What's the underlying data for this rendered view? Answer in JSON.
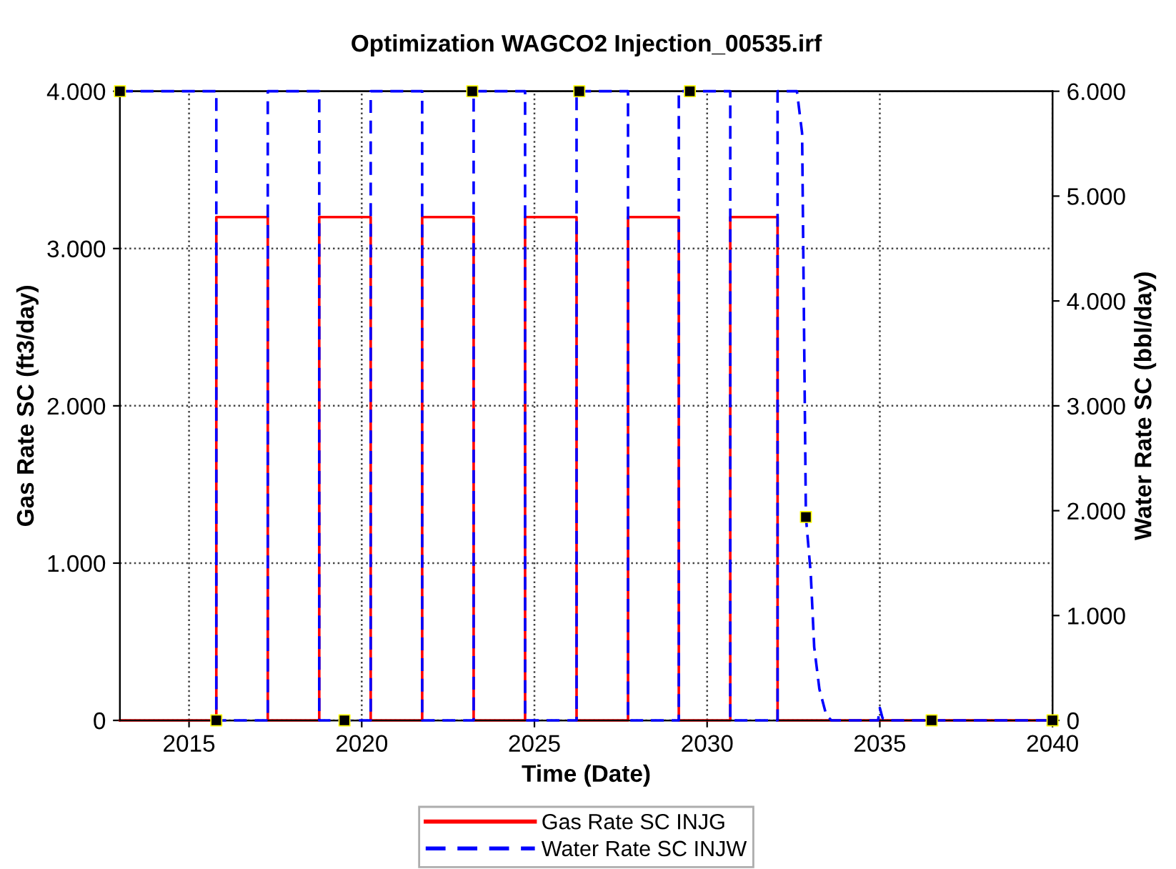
{
  "chart_data": {
    "type": "line",
    "title": "Optimization WAGCO2 Injection_00535.irf",
    "xlabel": "Time (Date)",
    "ylabel": "Gas Rate SC (ft3/day)",
    "y2label": "Water Rate SC (bbl/day)",
    "xlim": [
      2013,
      2040
    ],
    "xticks": [
      2015,
      2020,
      2025,
      2030,
      2035,
      2040
    ],
    "ylim": [
      0,
      4000
    ],
    "yticks": [
      0,
      {
        "value": 1000,
        "label": "1.000"
      },
      {
        "value": 2000,
        "label": "2.000"
      },
      {
        "value": 3000,
        "label": "3.000"
      },
      {
        "value": 4000,
        "label": "4.000"
      }
    ],
    "y2lim": [
      0,
      6000
    ],
    "y2ticks": [
      0,
      {
        "value": 1000,
        "label": "1.000"
      },
      {
        "value": 2000,
        "label": "2.000"
      },
      {
        "value": 3000,
        "label": "3.000"
      },
      {
        "value": 4000,
        "label": "4.000"
      },
      {
        "value": 5000,
        "label": "5.000"
      },
      {
        "value": 6000,
        "label": "6.000"
      }
    ],
    "grid": true,
    "legend": "bottom",
    "series": [
      {
        "name": "Gas Rate SC INJG",
        "color": "#ff0000",
        "line_style": "solid",
        "marker": "none",
        "x": [
          2013,
          2015.79,
          2015.79,
          2017.28,
          2017.28,
          2018.77,
          2018.77,
          2020.26,
          2020.26,
          2021.75,
          2021.75,
          2023.24,
          2023.24,
          2024.73,
          2024.73,
          2026.22,
          2026.22,
          2027.71,
          2027.71,
          2029.18,
          2029.18,
          2030.67,
          2030.67,
          2032.04,
          2032.04,
          2040
        ],
        "values": [
          0,
          0,
          3200,
          3200,
          0,
          0,
          3200,
          3200,
          0,
          0,
          3200,
          3200,
          0,
          0,
          3200,
          3200,
          0,
          0,
          3200,
          3200,
          0,
          0,
          3200,
          3200,
          0,
          0
        ]
      },
      {
        "name": "Water Rate SC INJW",
        "color": "#0000ff",
        "line_style": "dashed",
        "marker": "none",
        "axis": "y2",
        "x": [
          2013,
          2015.79,
          2015.79,
          2017.28,
          2017.28,
          2018.77,
          2018.77,
          2020.26,
          2020.26,
          2021.75,
          2021.75,
          2023.24,
          2023.24,
          2024.73,
          2024.73,
          2026.22,
          2026.22,
          2027.71,
          2027.71,
          2029.18,
          2029.18,
          2030.67,
          2030.67,
          2032.04,
          2032.04,
          2032.6,
          2032.75,
          2032.86,
          2033.0,
          2033.1,
          2033.25,
          2033.45,
          2033.6,
          2034.95,
          2035.0,
          2035.08,
          2035.3,
          2040
        ],
        "values": [
          6000,
          6000,
          0,
          0,
          6000,
          6000,
          0,
          0,
          6000,
          6000,
          0,
          0,
          6000,
          6000,
          0,
          0,
          6000,
          6000,
          0,
          0,
          6000,
          6000,
          0,
          0,
          6000,
          6000,
          5600,
          1940,
          1400,
          700,
          300,
          50,
          0,
          0,
          120,
          20,
          0,
          0
        ]
      },
      {
        "type": "scatter",
        "color": "#000000",
        "marker": "square",
        "axis": "y2",
        "x": [
          2013,
          2015.79,
          2019.5,
          2023.2,
          2026.3,
          2029.5,
          2032.86,
          2036.5,
          2040
        ],
        "values": [
          6000,
          0,
          0,
          6000,
          6000,
          6000,
          1940,
          0,
          0
        ]
      }
    ]
  }
}
